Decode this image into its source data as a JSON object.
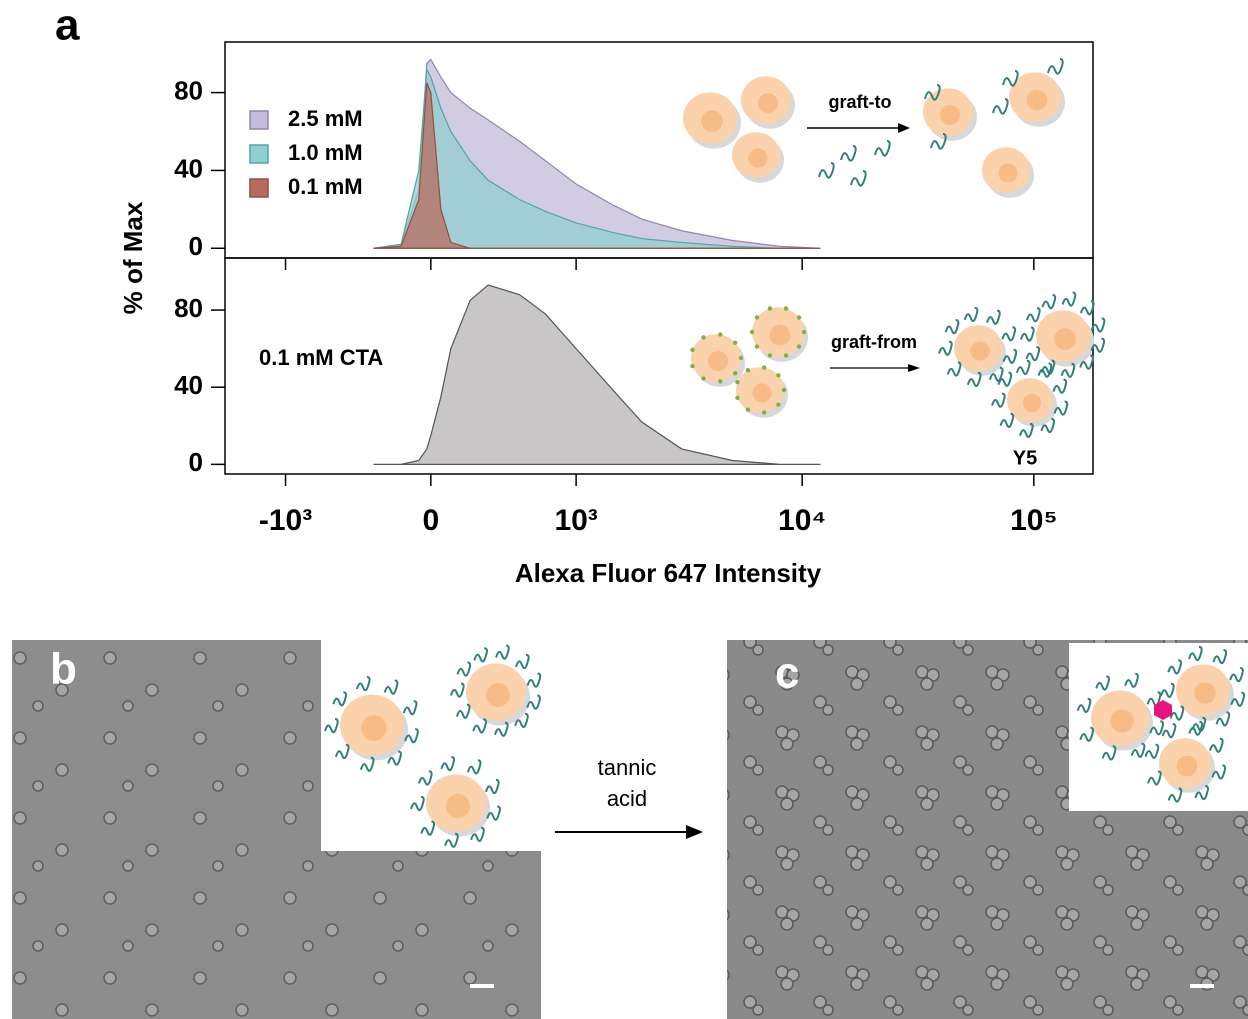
{
  "panel_labels": [
    "a",
    "b",
    "c"
  ],
  "chart_data": [
    {
      "type": "area",
      "ylabel": "% of Max",
      "x": [
        -300,
        -150,
        -60,
        -20,
        0,
        50,
        100,
        200,
        300,
        500,
        700,
        1000,
        1500,
        2000,
        3000,
        5000,
        8000,
        12000
      ],
      "series": [
        {
          "name": "2.5 mM",
          "color": "#c3bbd9",
          "edge": "#8f86b3",
          "values": [
            0,
            2,
            30,
            95,
            97,
            88,
            80,
            72,
            66,
            55,
            45,
            33,
            22,
            15,
            9,
            4,
            1,
            0
          ]
        },
        {
          "name": "1.0 mM",
          "color": "#92cdd0",
          "edge": "#4fa5aa",
          "values": [
            0,
            2,
            40,
            92,
            88,
            72,
            60,
            45,
            35,
            25,
            19,
            13,
            8,
            5,
            3,
            1,
            0,
            0
          ]
        },
        {
          "name": "0.1 mM",
          "color": "#b66c5c",
          "edge": "#94503f",
          "values": [
            0,
            1,
            25,
            85,
            80,
            20,
            3,
            0,
            0,
            0,
            0,
            0,
            0,
            0,
            0,
            0,
            0,
            0
          ]
        }
      ],
      "xlim": [
        -1900,
        180000
      ],
      "ylim": [
        -5,
        106
      ],
      "xticks": [
        -1000,
        0,
        1000,
        10000,
        100000
      ],
      "yticks": [
        0,
        40,
        80
      ],
      "legend": "upper left",
      "annotations": [
        "graft-to"
      ]
    },
    {
      "type": "area",
      "xlabel": "Alexa Fluor 647 Intensity",
      "x": [
        -300,
        -150,
        -60,
        -20,
        0,
        50,
        100,
        200,
        300,
        500,
        700,
        1000,
        1500,
        2000,
        3000,
        5000,
        8000,
        12000
      ],
      "series": [
        {
          "color": "#b5b3b3",
          "edge": "#555555",
          "values": [
            0,
            0,
            2,
            8,
            15,
            35,
            60,
            85,
            93,
            88,
            78,
            60,
            38,
            22,
            8,
            2,
            0,
            0
          ]
        }
      ],
      "xlim": [
        -1900,
        180000
      ],
      "ylim": [
        -5,
        107
      ],
      "xticks": [
        {
          "value": -1000,
          "label": "-10³"
        },
        0,
        {
          "value": 1000,
          "label": "10³"
        },
        {
          "value": 10000,
          "label": "10⁴"
        },
        {
          "value": 100000,
          "label": "10⁵"
        }
      ],
      "yticks": [
        0,
        40,
        80
      ],
      "annotations": [
        "0.1 mM CTA",
        "graft-from",
        "Y5"
      ]
    }
  ],
  "arrow_label": "tannic acid"
}
